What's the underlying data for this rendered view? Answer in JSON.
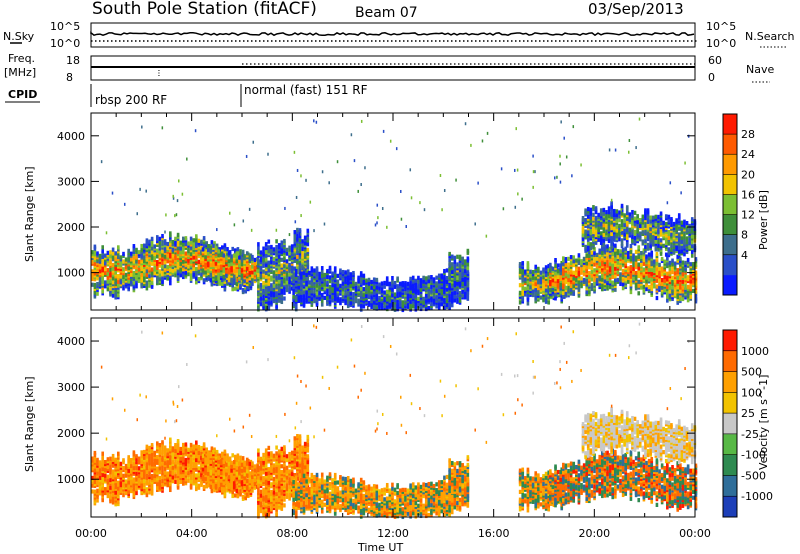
{
  "header": {
    "station": "South Pole Station (fitACF)",
    "beam": "Beam 07",
    "date": "03/Sep/2013"
  },
  "status_panels": {
    "nsky_label": "N.Sky",
    "nsearch_label": "N.Search",
    "freq_label_line1": "Freq.",
    "freq_label_line2": "[MHz]",
    "nave_label": "Nave",
    "cpid_label": "CPID",
    "noise_ticks_left": [
      "10^5",
      "10^0"
    ],
    "noise_ticks_right": [
      "10^5",
      "10^0"
    ],
    "freq_ticks_left": [
      "18",
      "8"
    ],
    "nave_ticks_right": [
      "60",
      "0"
    ],
    "cpid_segments": [
      {
        "label": "rbsp 200 RF",
        "start_hour": 0
      },
      {
        "label": "normal (fast) 151 RF",
        "start_hour": 6
      }
    ]
  },
  "colorbars": {
    "power": {
      "label": "Power [dB]",
      "ticks": [
        "28",
        "24",
        "20",
        "16",
        "12",
        "8",
        "4"
      ],
      "colors": [
        "#0a1bff",
        "#2a4fc8",
        "#3d6e8c",
        "#3f8f3a",
        "#7cbf33",
        "#f2c300",
        "#ff9a00",
        "#ff5a00",
        "#ff1a00"
      ]
    },
    "velocity": {
      "label": "Velocity [m s^-1]",
      "ticks": [
        "1000",
        "500",
        "100",
        "25",
        "-25",
        "-100",
        "-500",
        "-1000"
      ],
      "colors": [
        "#1d3fb8",
        "#2f6e9a",
        "#2e8a50",
        "#57b845",
        "#c8c8c8",
        "#f2c300",
        "#ffa000",
        "#ff6a00",
        "#ff1a00"
      ]
    }
  },
  "chart_data": [
    {
      "type": "heatmap",
      "title": "Power",
      "xlabel": "Time UT",
      "ylabel": "Slant Range [km]",
      "x_ticks": [
        "00:00",
        "04:00",
        "08:00",
        "12:00",
        "16:00",
        "20:00",
        "00:00"
      ],
      "x_range_hours": [
        0,
        24
      ],
      "y_ticks": [
        "1000",
        "2000",
        "3000",
        "4000"
      ],
      "ylim": [
        180,
        4500
      ],
      "colorbar_range_db": [
        0,
        32
      ],
      "echo_regions": [
        {
          "t_start": 0.0,
          "t_end": 6.6,
          "range_lo": 700,
          "range_hi": 1750,
          "value": "20-28 dB"
        },
        {
          "t_start": 8.0,
          "t_end": 15.0,
          "range_lo": 250,
          "range_hi": 1100,
          "value": "4-12 dB"
        },
        {
          "t_start": 17.0,
          "t_end": 24.0,
          "range_lo": 600,
          "range_hi": 2400,
          "value": "16-28 dB"
        }
      ]
    },
    {
      "type": "heatmap",
      "title": "Velocity",
      "xlabel": "Time UT",
      "ylabel": "Slant Range [km]",
      "x_ticks": [
        "00:00",
        "04:00",
        "08:00",
        "12:00",
        "16:00",
        "20:00",
        "00:00"
      ],
      "x_range_hours": [
        0,
        24
      ],
      "y_ticks": [
        "1000",
        "2000",
        "3000",
        "4000"
      ],
      "ylim": [
        180,
        4500
      ],
      "colorbar_range_ms": [
        -1000,
        1000
      ]
    }
  ],
  "axes": {
    "x_title": "Time UT",
    "y_title": "Slant Range [km]"
  }
}
